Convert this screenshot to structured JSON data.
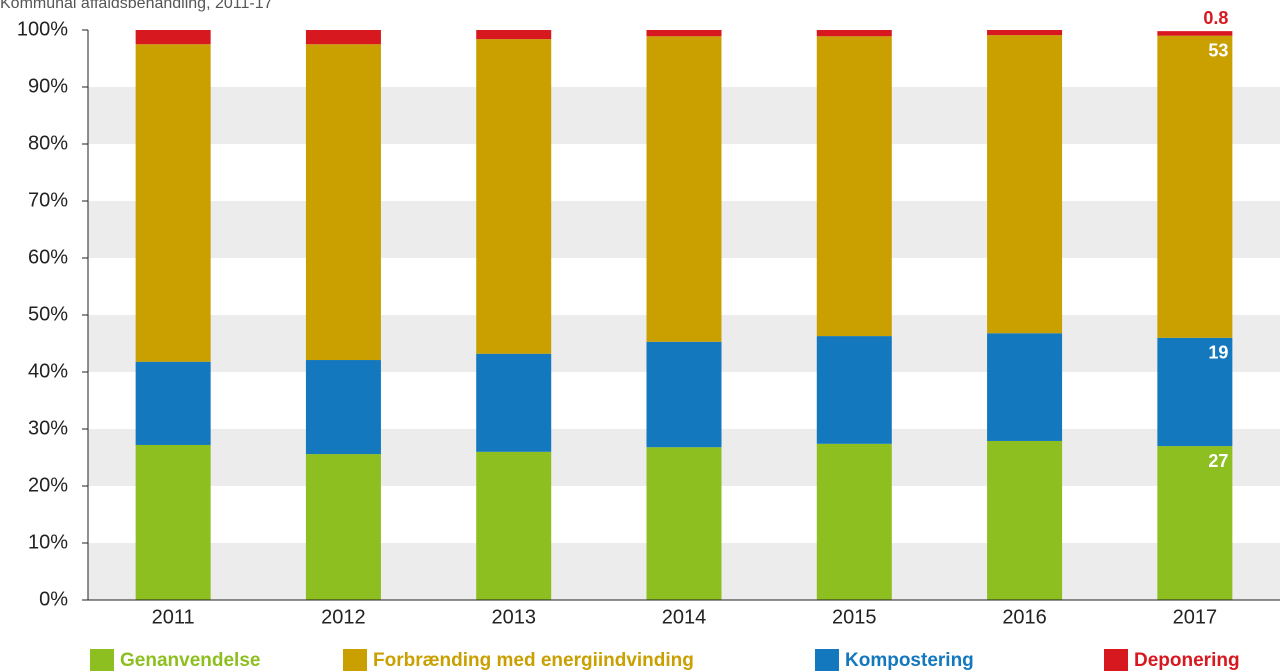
{
  "chart_data": {
    "type": "stacked_bar",
    "title": "Kommunal affaldsbehandling, 2011-17",
    "categories": [
      "2011",
      "2012",
      "2013",
      "2014",
      "2015",
      "2016",
      "2017"
    ],
    "series": [
      {
        "name": "Genanvendelse",
        "color": "#8dbf20",
        "values": [
          27.2,
          25.6,
          26.0,
          26.8,
          27.4,
          27.9,
          27
        ]
      },
      {
        "name": "Kompostering",
        "color": "#1378be",
        "values": [
          14.6,
          16.5,
          17.2,
          18.5,
          18.9,
          18.9,
          19
        ]
      },
      {
        "name": "Forbrænding med energiindvinding",
        "color": "#c9a000",
        "values": [
          55.7,
          55.4,
          55.2,
          53.6,
          52.6,
          52.3,
          53
        ]
      },
      {
        "name": "Deponering",
        "color": "#d8181f",
        "values": [
          2.5,
          2.5,
          1.6,
          1.1,
          1.1,
          0.9,
          0.8
        ]
      }
    ],
    "ylim": [
      0,
      100
    ],
    "yticks": [
      {
        "value": 0,
        "label": "0%"
      },
      {
        "value": 10,
        "label": "10%"
      },
      {
        "value": 20,
        "label": "20%"
      },
      {
        "value": 30,
        "label": "30%"
      },
      {
        "value": 40,
        "label": "40%"
      },
      {
        "value": 50,
        "label": "50%"
      },
      {
        "value": 60,
        "label": "60%"
      },
      {
        "value": 70,
        "label": "70%"
      },
      {
        "value": 80,
        "label": "80%"
      },
      {
        "value": 90,
        "label": "90%"
      },
      {
        "value": 100,
        "label": "100%"
      }
    ],
    "grid": true
  }
}
